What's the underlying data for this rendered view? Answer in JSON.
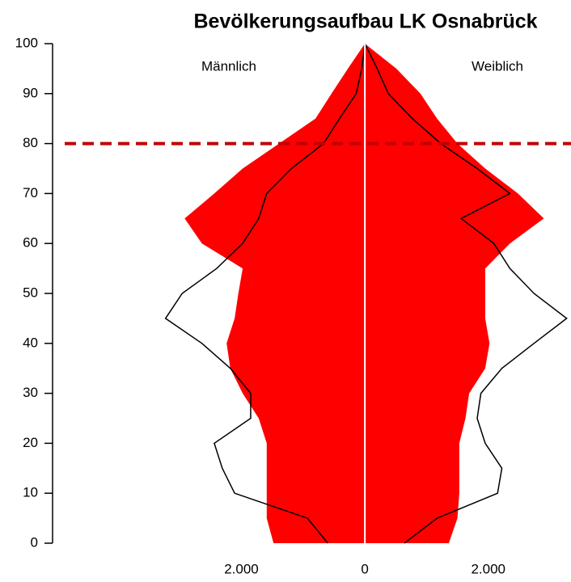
{
  "chart_data": {
    "type": "pyramid",
    "title": "Bevölkerungsaufbau LK Osnabrück",
    "left_label": "Männlich",
    "right_label": "Weiblich",
    "x": [
      0,
      5,
      10,
      15,
      20,
      25,
      30,
      35,
      40,
      45,
      50,
      55,
      60,
      65,
      70,
      75,
      80,
      85,
      90,
      95,
      100
    ],
    "series": [
      {
        "side": "left",
        "style": "area",
        "color": "#ff0000",
        "values": [
          1480,
          1590,
          1590,
          1590,
          1590,
          1720,
          1980,
          2180,
          2240,
          2110,
          2050,
          1980,
          2640,
          2920,
          2440,
          1980,
          1390,
          800,
          540,
          275,
          0
        ]
      },
      {
        "side": "right",
        "style": "area",
        "color": "#ff0000",
        "values": [
          1360,
          1500,
          1530,
          1530,
          1530,
          1630,
          1690,
          1950,
          2020,
          1950,
          1950,
          1950,
          2350,
          2900,
          2480,
          1950,
          1500,
          1170,
          900,
          510,
          0
        ]
      },
      {
        "side": "left",
        "style": "line",
        "color": "#000000",
        "values": [
          600,
          930,
          2110,
          2310,
          2440,
          1850,
          1850,
          2180,
          2640,
          3230,
          2960,
          2400,
          1980,
          1720,
          1590,
          1190,
          670,
          410,
          140,
          50,
          0
        ]
      },
      {
        "side": "right",
        "style": "line",
        "color": "#000000",
        "values": [
          640,
          1170,
          2150,
          2220,
          1950,
          1820,
          1880,
          2220,
          2740,
          3270,
          2740,
          2350,
          2090,
          1560,
          2350,
          1820,
          1230,
          770,
          380,
          200,
          0
        ]
      }
    ],
    "xlim": [
      -5060,
      3340
    ],
    "xticks": [
      {
        "value": -2000,
        "label": "2.000"
      },
      0,
      {
        "value": 2000,
        "label": "2.000"
      }
    ],
    "ylim": [
      0,
      100
    ],
    "yticks": [
      0,
      10,
      20,
      30,
      40,
      50,
      60,
      70,
      80,
      90,
      100
    ],
    "reference_line": {
      "y": 80,
      "color": "#c00000"
    }
  }
}
